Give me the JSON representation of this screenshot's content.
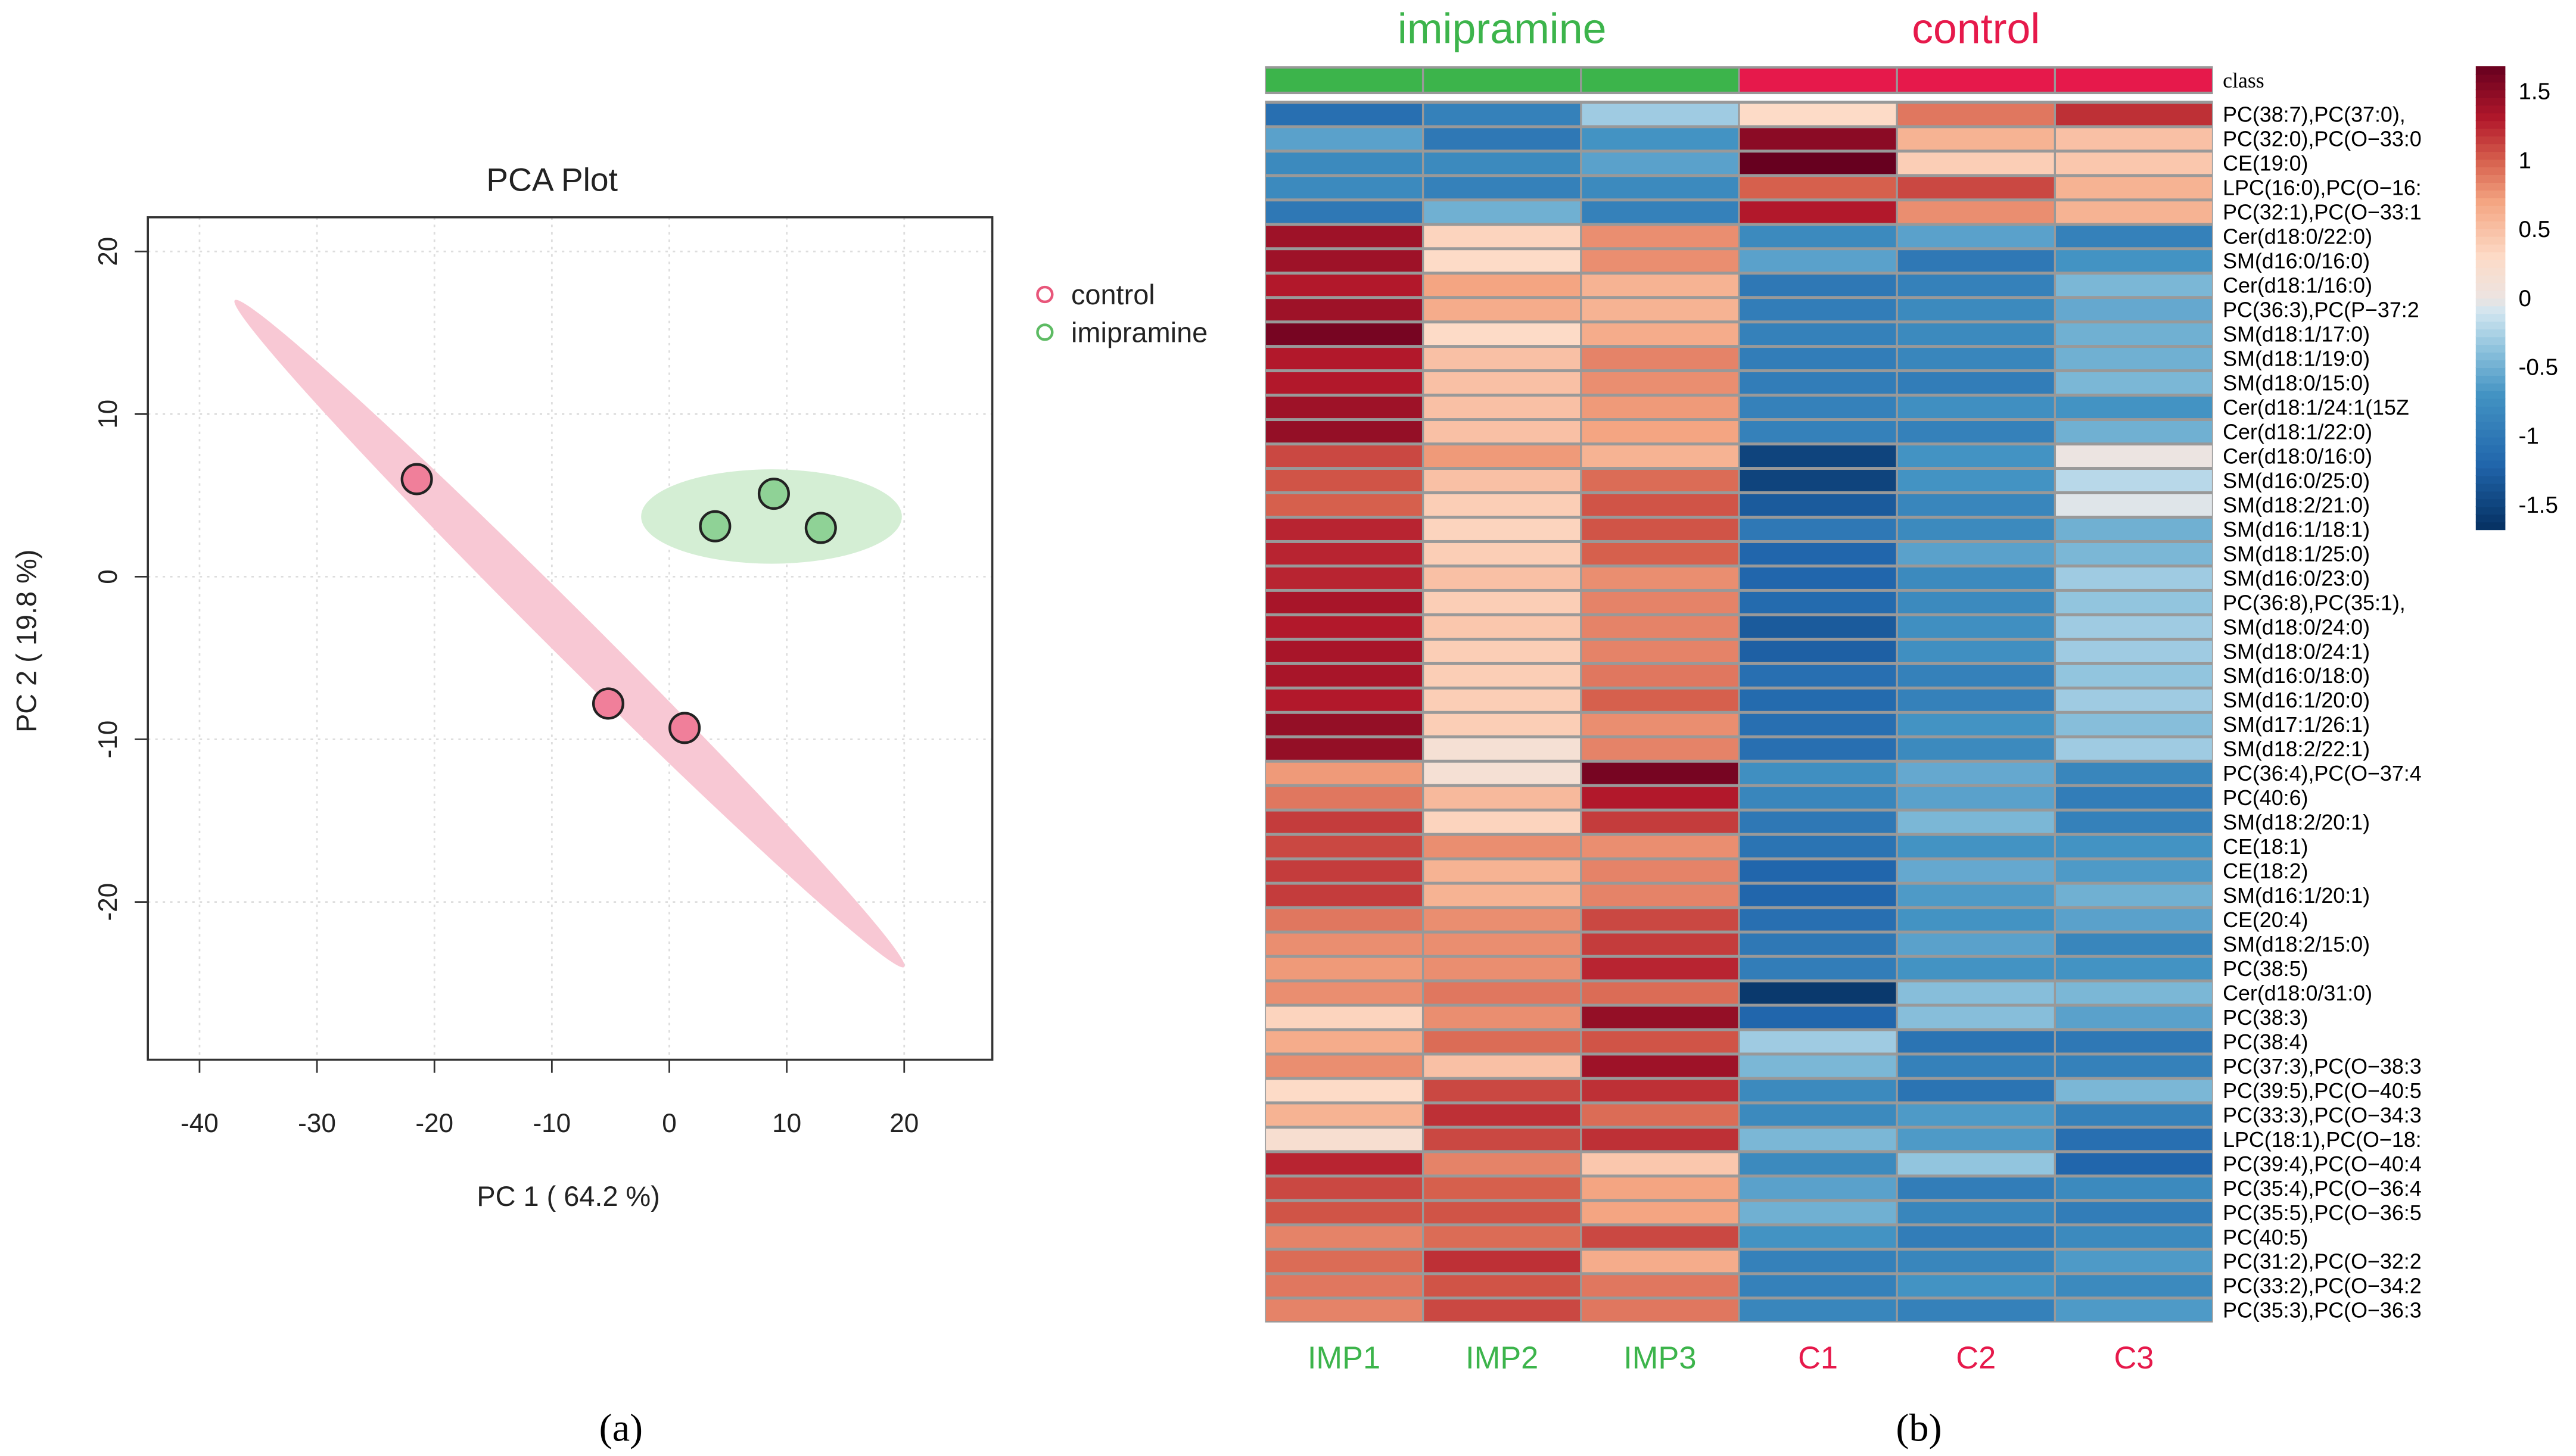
{
  "chart_data": [
    {
      "type": "scatter",
      "title": "PCA Plot",
      "xlabel": "PC 1 ( 64.2 %)",
      "ylabel": "PC 2 ( 19.8 %)",
      "xlim": [
        -44.4,
        27.5
      ],
      "ylim": [
        -29.7,
        22.1
      ],
      "xticks": [
        -40,
        -30,
        -20,
        -10,
        0,
        10,
        20
      ],
      "yticks": [
        -20,
        -10,
        0,
        10,
        20
      ],
      "grid": true,
      "legend_position": "right-top",
      "series": [
        {
          "name": "control",
          "color": "#e8567a",
          "fill": "#f07f9a",
          "ellipse_color": "#f8c8d4",
          "points": [
            [
              -21.5,
              6.0
            ],
            [
              -5.2,
              -7.8
            ],
            [
              1.3,
              -9.3
            ]
          ],
          "ellipse": {
            "center": [
              -8.5,
              -3.5
            ],
            "endpoints": [
              [
                -37,
                17
              ],
              [
                20,
                -24
              ]
            ],
            "minor_halfwidth": 3.0
          }
        },
        {
          "name": "imipramine",
          "color": "#5dbb63",
          "fill": "#8fd296",
          "ellipse_color": "#d4eed4",
          "points": [
            [
              3.9,
              3.1
            ],
            [
              8.9,
              5.1
            ],
            [
              12.9,
              3.0
            ]
          ],
          "ellipse": {
            "center": [
              8.7,
              3.7
            ],
            "endpoints": [
              [
                -2.4,
                3.7
              ],
              [
                19.8,
                3.7
              ]
            ],
            "minor_halfwidth": 2.9
          }
        }
      ],
      "panel_label": "(a)"
    },
    {
      "type": "heatmap",
      "group_labels": [
        {
          "name": "imipramine",
          "color": "#3cb44b"
        },
        {
          "name": "control",
          "color": "#e6194b"
        }
      ],
      "class_label": "class",
      "columns": [
        "IMP1",
        "IMP2",
        "IMP3",
        "C1",
        "C2",
        "C3"
      ],
      "column_groups": [
        "imipramine",
        "imipramine",
        "imipramine",
        "control",
        "control",
        "control"
      ],
      "colorbar": {
        "range": [
          -1.68,
          1.68
        ],
        "ticks": [
          "1.5",
          "1",
          "0.5",
          "0",
          "-0.5",
          "-1",
          "-1.5"
        ],
        "tick_values": [
          1.5,
          1,
          0.5,
          0,
          -0.5,
          -1,
          -1.5
        ]
      },
      "rows": [
        "PC(38:7),PC(37:0),",
        "PC(32:0),PC(O−33:0",
        "CE(19:0)",
        "LPC(16:0),PC(O−16:",
        "PC(32:1),PC(O−33:1",
        "Cer(d18:0/22:0)",
        "SM(d16:0/16:0)",
        "Cer(d18:1/16:0)",
        "PC(36:3),PC(P−37:2",
        "SM(d18:1/17:0)",
        "SM(d18:1/19:0)",
        "SM(d18:0/15:0)",
        "Cer(d18:1/24:1(15Z",
        "Cer(d18:1/22:0)",
        "Cer(d18:0/16:0)",
        "SM(d16:0/25:0)",
        "SM(d18:2/21:0)",
        "SM(d16:1/18:1)",
        "SM(d18:1/25:0)",
        "SM(d16:0/23:0)",
        "PC(36:8),PC(35:1),",
        "SM(d18:0/24:0)",
        "SM(d18:0/24:1)",
        "SM(d16:0/18:0)",
        "SM(d16:1/20:0)",
        "SM(d17:1/26:1)",
        "SM(d18:2/22:1)",
        "PC(36:4),PC(O−37:4",
        "PC(40:6)",
        "SM(d18:2/20:1)",
        "CE(18:1)",
        "CE(18:2)",
        "SM(d16:1/20:1)",
        "CE(20:4)",
        "SM(d18:2/15:0)",
        "PC(38:5)",
        "Cer(d18:0/31:0)",
        "PC(38:3)",
        "PC(38:4)",
        "PC(37:3),PC(O−38:3",
        "PC(39:5),PC(O−40:5",
        "PC(33:3),PC(O−34:3",
        "LPC(18:1),PC(O−18:",
        "PC(39:4),PC(O−40:4",
        "PC(35:4),PC(O−36:4",
        "PC(35:5),PC(O−36:5",
        "PC(40:5)",
        "PC(31:2),PC(O−32:2",
        "PC(33:2),PC(O−34:2",
        "PC(35:3),PC(O−36:3"
      ],
      "values": [
        [
          -1.1,
          -0.9,
          -0.3,
          0.3,
          0.9,
          1.2
        ],
        [
          -0.6,
          -1.0,
          -0.7,
          1.5,
          0.6,
          0.5
        ],
        [
          -0.8,
          -0.8,
          -0.6,
          1.7,
          0.4,
          0.45
        ],
        [
          -0.8,
          -0.9,
          -0.8,
          1.0,
          1.1,
          0.6
        ],
        [
          -1.0,
          -0.5,
          -0.9,
          1.3,
          0.8,
          0.6
        ],
        [
          1.4,
          0.35,
          0.8,
          -0.8,
          -0.6,
          -0.9
        ],
        [
          1.4,
          0.3,
          0.8,
          -0.6,
          -1.0,
          -0.7
        ],
        [
          1.3,
          0.7,
          0.6,
          -1.0,
          -0.9,
          -0.45
        ],
        [
          1.4,
          0.65,
          0.6,
          -0.95,
          -0.8,
          -0.55
        ],
        [
          1.6,
          0.3,
          0.65,
          -0.9,
          -0.8,
          -0.5
        ],
        [
          1.3,
          0.5,
          0.85,
          -0.95,
          -0.85,
          -0.5
        ],
        [
          1.3,
          0.5,
          0.8,
          -0.95,
          -0.95,
          -0.45
        ],
        [
          1.4,
          0.5,
          0.75,
          -0.9,
          -0.75,
          -0.7
        ],
        [
          1.45,
          0.5,
          0.7,
          -0.9,
          -0.9,
          -0.5
        ],
        [
          1.1,
          0.75,
          0.6,
          -1.5,
          -0.7,
          0.0
        ],
        [
          1.05,
          0.5,
          0.95,
          -1.5,
          -0.7,
          -0.2
        ],
        [
          1.0,
          0.4,
          1.05,
          -1.3,
          -0.85,
          -0.05
        ],
        [
          1.25,
          0.35,
          1.05,
          -1.0,
          -0.8,
          -0.5
        ],
        [
          1.25,
          0.4,
          1.0,
          -1.2,
          -0.6,
          -0.45
        ],
        [
          1.25,
          0.5,
          0.8,
          -1.2,
          -0.8,
          -0.3
        ],
        [
          1.35,
          0.4,
          0.85,
          -1.15,
          -0.8,
          -0.35
        ],
        [
          1.3,
          0.45,
          0.85,
          -1.3,
          -0.75,
          -0.3
        ],
        [
          1.35,
          0.4,
          0.85,
          -1.25,
          -0.75,
          -0.3
        ],
        [
          1.35,
          0.4,
          0.9,
          -1.1,
          -0.9,
          -0.35
        ],
        [
          1.3,
          0.4,
          1.0,
          -1.15,
          -0.9,
          -0.3
        ],
        [
          1.45,
          0.4,
          0.8,
          -1.1,
          -0.7,
          -0.4
        ],
        [
          1.45,
          0.15,
          0.85,
          -1.1,
          -0.8,
          -0.3
        ],
        [
          0.75,
          0.15,
          1.6,
          -0.75,
          -0.55,
          -0.85
        ],
        [
          0.9,
          0.55,
          1.3,
          -0.85,
          -0.6,
          -0.95
        ],
        [
          1.15,
          0.35,
          1.15,
          -1.0,
          -0.45,
          -0.9
        ],
        [
          1.1,
          0.8,
          0.8,
          -1.05,
          -0.7,
          -0.7
        ],
        [
          1.15,
          0.6,
          0.85,
          -1.2,
          -0.55,
          -0.65
        ],
        [
          1.15,
          0.6,
          0.85,
          -1.2,
          -0.65,
          -0.5
        ],
        [
          0.9,
          0.8,
          1.1,
          -1.1,
          -0.7,
          -0.6
        ],
        [
          0.8,
          0.8,
          1.15,
          -1.0,
          -0.6,
          -0.85
        ],
        [
          0.75,
          0.8,
          1.25,
          -0.95,
          -0.7,
          -0.7
        ],
        [
          0.8,
          0.9,
          0.95,
          -1.6,
          -0.4,
          -0.45
        ],
        [
          0.35,
          0.8,
          1.45,
          -1.2,
          -0.4,
          -0.6
        ],
        [
          0.65,
          0.95,
          1.05,
          -0.3,
          -1.05,
          -1.0
        ],
        [
          0.8,
          0.5,
          1.4,
          -0.45,
          -0.9,
          -0.9
        ],
        [
          0.3,
          1.1,
          1.2,
          -0.8,
          -1.05,
          -0.45
        ],
        [
          0.6,
          1.2,
          0.95,
          -0.8,
          -0.65,
          -0.9
        ],
        [
          0.2,
          1.1,
          1.2,
          -0.45,
          -0.65,
          -1.1
        ],
        [
          1.25,
          0.85,
          0.45,
          -0.8,
          -0.35,
          -1.2
        ],
        [
          1.1,
          1.0,
          0.7,
          -0.6,
          -0.95,
          -0.8
        ],
        [
          1.05,
          1.05,
          0.7,
          -0.5,
          -0.85,
          -0.95
        ],
        [
          0.85,
          0.95,
          1.1,
          -0.7,
          -0.95,
          -0.8
        ],
        [
          0.95,
          1.2,
          0.65,
          -0.9,
          -0.85,
          -0.65
        ],
        [
          0.9,
          1.05,
          0.9,
          -0.9,
          -0.7,
          -0.8
        ],
        [
          0.85,
          1.1,
          0.9,
          -0.85,
          -0.9,
          -0.65
        ]
      ],
      "panel_label": "(b)"
    }
  ]
}
